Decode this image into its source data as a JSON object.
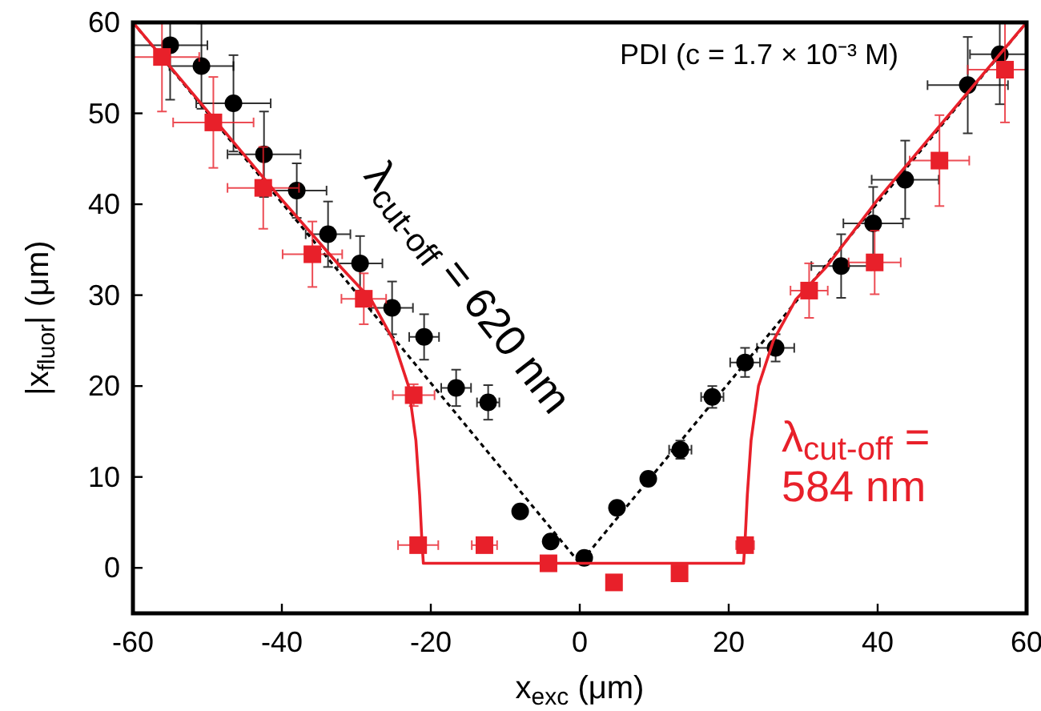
{
  "chart_data": {
    "type": "scatter",
    "title": "PDI (c = 1.7 × 10⁻³ M)",
    "xlabel": "x$_{exc}$ (μm)",
    "ylabel": "|x$_{fluor}$| (μm)",
    "xlim": [
      -60,
      60
    ],
    "ylim": [
      -5,
      60
    ],
    "xticks": [
      -60,
      -40,
      -20,
      0,
      20,
      40,
      60
    ],
    "yticks": [
      0,
      10,
      20,
      30,
      40,
      50,
      60
    ],
    "grid": false,
    "series": [
      {
        "type": "line",
        "name": "λ$_{cut-off}$ = 620 nm",
        "color": "#000000",
        "line_style": "dashed",
        "x": [
          -60,
          0,
          60
        ],
        "values": [
          60,
          0.5,
          60
        ]
      },
      {
        "color": "#000000",
        "marker": "circle",
        "x": [
          -55,
          -50.8,
          -46.5,
          -42.4,
          -38,
          -33.8,
          -29.5,
          -25.2,
          -20.9,
          -16.6,
          -12.3,
          -8,
          -3.9,
          0.6,
          5,
          9.2,
          13.5,
          17.8,
          22.2,
          26.3,
          35.1,
          39.4,
          43.7,
          52.1,
          56.4
        ],
        "values": [
          57.5,
          55.2,
          51.1,
          45.5,
          41.5,
          36.7,
          33.5,
          28.6,
          25.4,
          19.8,
          18.2,
          6.2,
          2.9,
          1.1,
          6.6,
          9.8,
          13,
          18.8,
          22.6,
          24.2,
          33.2,
          37.9,
          42.7,
          53.1,
          56.5
        ],
        "errors": [
          6,
          4.7,
          5.3,
          4.7,
          3,
          3.6,
          3,
          2.9,
          2.5,
          2,
          1.9,
          null,
          null,
          null,
          null,
          null,
          1,
          1.2,
          1.6,
          1.5,
          3.5,
          4,
          4.3,
          5.3,
          5.5
        ],
        "xerrors": [
          5,
          4.3,
          5,
          4.9,
          4,
          3,
          3,
          2.8,
          2,
          2,
          1.5,
          null,
          null,
          null,
          null,
          null,
          1.5,
          1.5,
          2,
          2.5,
          4,
          4,
          4.5,
          5.4,
          4
        ]
      },
      {
        "type": "line",
        "name": "λ$_{cut-off}$ = 584 nm",
        "color": "#e8202a",
        "line_style": "solid",
        "x": [
          -60,
          -40,
          -32,
          -28,
          -25,
          -23,
          -22,
          -21.5,
          -21.2,
          -21,
          22,
          22.2,
          22.5,
          23,
          24,
          26,
          29,
          33,
          40,
          60
        ],
        "values": [
          60,
          40.5,
          33,
          29.5,
          25,
          20,
          14,
          8,
          3,
          0.5,
          0.5,
          3,
          8,
          14,
          20,
          25,
          29.5,
          33,
          40.5,
          60
        ]
      },
      {
        "color": "#e8202a",
        "marker": "square",
        "x": [
          -56.1,
          -49.2,
          -42.5,
          -35.9,
          -29,
          -22.3,
          -21.7,
          -12.8,
          -4.2,
          4.6,
          13.4,
          22.2,
          30.8,
          39.6,
          48.3,
          57.1
        ],
        "values": [
          56.2,
          49,
          41.8,
          34.5,
          29.6,
          19,
          2.5,
          2.5,
          0.5,
          -1.6,
          -0.6,
          2.5,
          30.5,
          33.6,
          44.8,
          54.8
        ],
        "errors": [
          6,
          5,
          4.5,
          3.6,
          2.8,
          1.2,
          null,
          null,
          null,
          null,
          null,
          null,
          3,
          3.5,
          5,
          5.8
        ],
        "xerrors": [
          5,
          5.4,
          4.8,
          4,
          3,
          2.8,
          2.7,
          1.7,
          null,
          null,
          null,
          1.2,
          2.5,
          3.5,
          4,
          5
        ]
      }
    ]
  }
}
